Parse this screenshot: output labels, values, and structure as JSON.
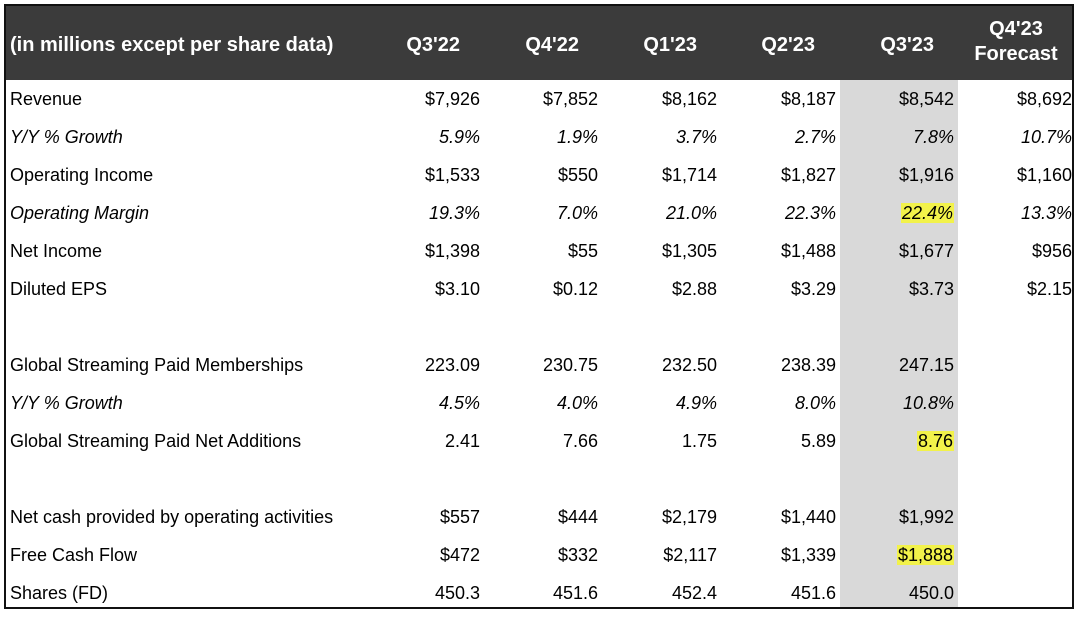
{
  "table": {
    "header": {
      "label": "(in millions except per share data)",
      "columns": [
        "Q3'22",
        "Q4'22",
        "Q1'23",
        "Q2'23",
        "Q3'23"
      ],
      "forecast_line1": "Q4'23",
      "forecast_line2": "Forecast"
    },
    "rows": [
      {
        "label": "Revenue",
        "values": [
          "$7,926",
          "$7,852",
          "$8,162",
          "$8,187",
          "$8,542",
          "$8,692"
        ]
      },
      {
        "label": "Y/Y % Growth",
        "values": [
          "5.9%",
          "1.9%",
          "3.7%",
          "2.7%",
          "7.8%",
          "10.7%"
        ]
      },
      {
        "label": "Operating Income",
        "values": [
          "$1,533",
          "$550",
          "$1,714",
          "$1,827",
          "$1,916",
          "$1,160"
        ]
      },
      {
        "label": "Operating Margin",
        "values": [
          "19.3%",
          "7.0%",
          "21.0%",
          "22.3%",
          "22.4%",
          "13.3%"
        ]
      },
      {
        "label": "Net Income",
        "values": [
          "$1,398",
          "$55",
          "$1,305",
          "$1,488",
          "$1,677",
          "$956"
        ]
      },
      {
        "label": "Diluted EPS",
        "values": [
          "$3.10",
          "$0.12",
          "$2.88",
          "$3.29",
          "$3.73",
          "$2.15"
        ]
      },
      {
        "label": "Global Streaming Paid Memberships",
        "values": [
          "223.09",
          "230.75",
          "232.50",
          "238.39",
          "247.15",
          ""
        ]
      },
      {
        "label": "Y/Y % Growth",
        "values": [
          "4.5%",
          "4.0%",
          "4.9%",
          "8.0%",
          "10.8%",
          ""
        ]
      },
      {
        "label": "Global Streaming Paid Net Additions",
        "values": [
          "2.41",
          "7.66",
          "1.75",
          "5.89",
          "8.76",
          ""
        ]
      },
      {
        "label": "Net cash provided by operating activities",
        "values": [
          "$557",
          "$444",
          "$2,179",
          "$1,440",
          "$1,992",
          ""
        ]
      },
      {
        "label": "Free Cash Flow",
        "values": [
          "$472",
          "$332",
          "$2,117",
          "$1,339",
          "$1,888",
          ""
        ]
      },
      {
        "label": "Shares (FD)",
        "values": [
          "450.3",
          "451.6",
          "452.4",
          "451.6",
          "450.0",
          ""
        ]
      }
    ]
  },
  "colors": {
    "header_bg": "#3b3b3b",
    "highlight_column": "#d9d9d9",
    "highlight_marker": "#f2f24a"
  }
}
